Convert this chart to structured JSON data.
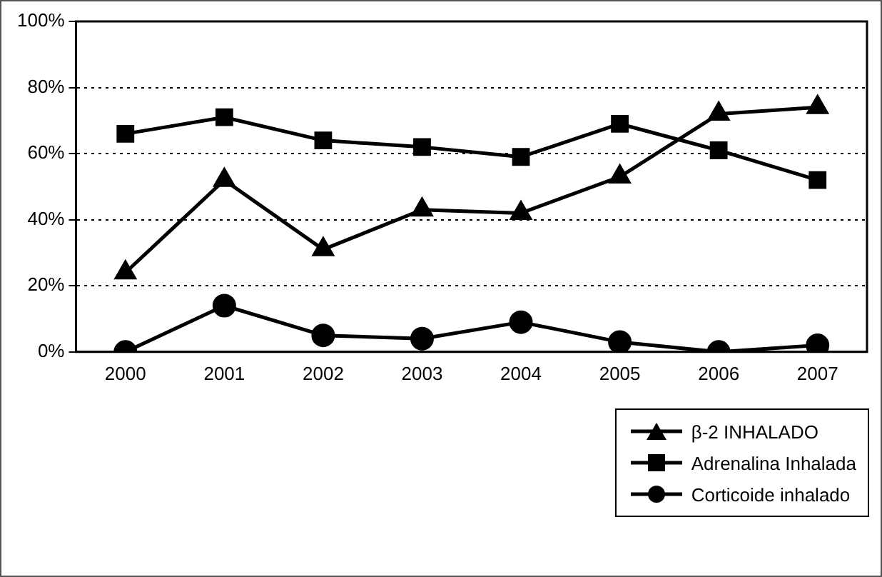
{
  "chart_data": {
    "type": "line",
    "categories": [
      "2000",
      "2001",
      "2002",
      "2003",
      "2004",
      "2005",
      "2006",
      "2007"
    ],
    "series": [
      {
        "name": "β-2 INHALADO",
        "color": "#000000",
        "marker": "triangle",
        "values": [
          24,
          52,
          31,
          43,
          42,
          53,
          72,
          74
        ]
      },
      {
        "name": "Adrenalina Inhalada",
        "color": "#000000",
        "marker": "square",
        "values": [
          66,
          71,
          64,
          62,
          59,
          69,
          61,
          52
        ]
      },
      {
        "name": "Corticoide inhalado",
        "color": "#000000",
        "marker": "circle",
        "values": [
          0,
          14,
          5,
          4,
          9,
          3,
          0,
          2
        ]
      }
    ],
    "ylim": [
      0,
      100
    ],
    "yticks": [
      {
        "value": 0,
        "label": "0%"
      },
      {
        "value": 20,
        "label": "20%"
      },
      {
        "value": 40,
        "label": "40%"
      },
      {
        "value": 60,
        "label": "60%"
      },
      {
        "value": 80,
        "label": "80%"
      },
      {
        "value": 100,
        "label": "100%"
      }
    ],
    "grid": "y",
    "legend": "bottom right",
    "line_style": "solid"
  }
}
